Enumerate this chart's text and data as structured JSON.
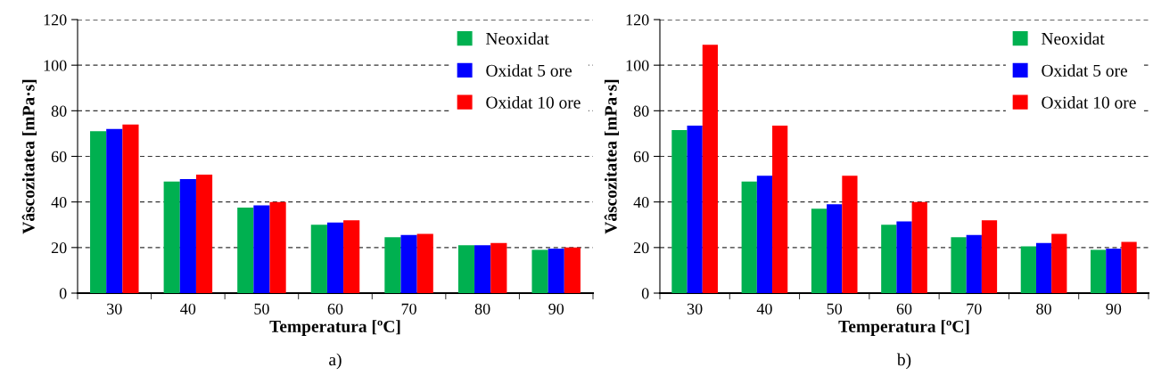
{
  "chart_data": [
    {
      "type": "bar",
      "categories": [
        "30",
        "40",
        "50",
        "60",
        "70",
        "80",
        "90"
      ],
      "xlabel": "Temperatura [ºC]",
      "ylabel": "Vâscozitatea [mPa·s]",
      "ylim": [
        0,
        120
      ],
      "yticks": [
        0,
        20,
        40,
        60,
        80,
        100,
        120
      ],
      "grid": "y",
      "legend": "top right",
      "annotations": [
        "a)"
      ],
      "series": [
        {
          "name": "Neoxidat",
          "color": "#00b050",
          "values": [
            71,
            49,
            37.5,
            30,
            24.5,
            21,
            19
          ]
        },
        {
          "name": "Oxidat 5 ore",
          "color": "#0000ff",
          "values": [
            72,
            50,
            38.5,
            31,
            25.5,
            21,
            19.5
          ]
        },
        {
          "name": "Oxidat 10 ore",
          "color": "#ff0000",
          "values": [
            74,
            52,
            40,
            32,
            26,
            22,
            20
          ]
        }
      ]
    },
    {
      "type": "bar",
      "categories": [
        "30",
        "40",
        "50",
        "60",
        "70",
        "80",
        "90"
      ],
      "xlabel": "Temperatura [ºC]",
      "ylabel": "Vâscozitatea [mPa·s]",
      "ylim": [
        0,
        120
      ],
      "yticks": [
        0,
        20,
        40,
        60,
        80,
        100,
        120
      ],
      "grid": "y",
      "legend": "top right",
      "annotations": [
        "b)"
      ],
      "series": [
        {
          "name": "Neoxidat",
          "color": "#00b050",
          "values": [
            71.5,
            49,
            37,
            30,
            24.5,
            20.5,
            19
          ]
        },
        {
          "name": "Oxidat 5 ore",
          "color": "#0000ff",
          "values": [
            73.5,
            51.5,
            39,
            31.5,
            25.5,
            22,
            19.5
          ]
        },
        {
          "name": "Oxidat 10 ore",
          "color": "#ff0000",
          "values": [
            109,
            73.5,
            51.5,
            40,
            32,
            26,
            22.5
          ]
        }
      ]
    }
  ]
}
